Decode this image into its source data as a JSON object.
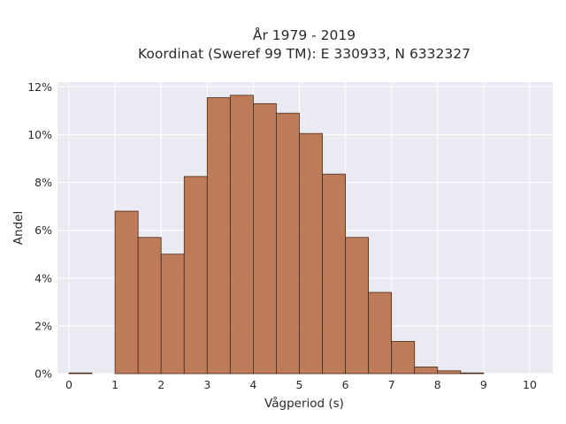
{
  "chart_data": {
    "type": "bar",
    "title": "År 1979 - 2019",
    "subtitle": "Koordinat (Sweref 99 TM): E 330933, N 6332327",
    "xlabel": "Vågperiod (s)",
    "ylabel": "Andel",
    "xlim": [
      -0.25,
      10.5
    ],
    "ylim": [
      0,
      12.2
    ],
    "x_ticks": [
      "0",
      "1",
      "2",
      "3",
      "4",
      "5",
      "6",
      "7",
      "8",
      "9",
      "10"
    ],
    "y_ticks": [
      "0%",
      "2%",
      "4%",
      "6%",
      "8%",
      "10%",
      "12%"
    ],
    "bin_width": 0.5,
    "bins": [
      {
        "x": 0.0,
        "value": 0.03
      },
      {
        "x": 0.5,
        "value": 0.0
      },
      {
        "x": 1.0,
        "value": 6.8
      },
      {
        "x": 1.5,
        "value": 5.7
      },
      {
        "x": 2.0,
        "value": 5.0
      },
      {
        "x": 2.5,
        "value": 8.25
      },
      {
        "x": 3.0,
        "value": 11.55
      },
      {
        "x": 3.5,
        "value": 11.65
      },
      {
        "x": 4.0,
        "value": 11.3
      },
      {
        "x": 4.5,
        "value": 10.9
      },
      {
        "x": 5.0,
        "value": 10.05
      },
      {
        "x": 5.5,
        "value": 8.35
      },
      {
        "x": 6.0,
        "value": 5.7
      },
      {
        "x": 6.5,
        "value": 3.4
      },
      {
        "x": 7.0,
        "value": 1.35
      },
      {
        "x": 7.5,
        "value": 0.28
      },
      {
        "x": 8.0,
        "value": 0.12
      },
      {
        "x": 8.5,
        "value": 0.03
      },
      {
        "x": 9.0,
        "value": 0.0
      },
      {
        "x": 9.5,
        "value": 0.0
      }
    ],
    "grid": true,
    "colors": {
      "bar": "#bb7550",
      "bar_edge": "#4a2a18",
      "plot_bg": "#eaeaf2",
      "grid": "#ffffff"
    }
  }
}
